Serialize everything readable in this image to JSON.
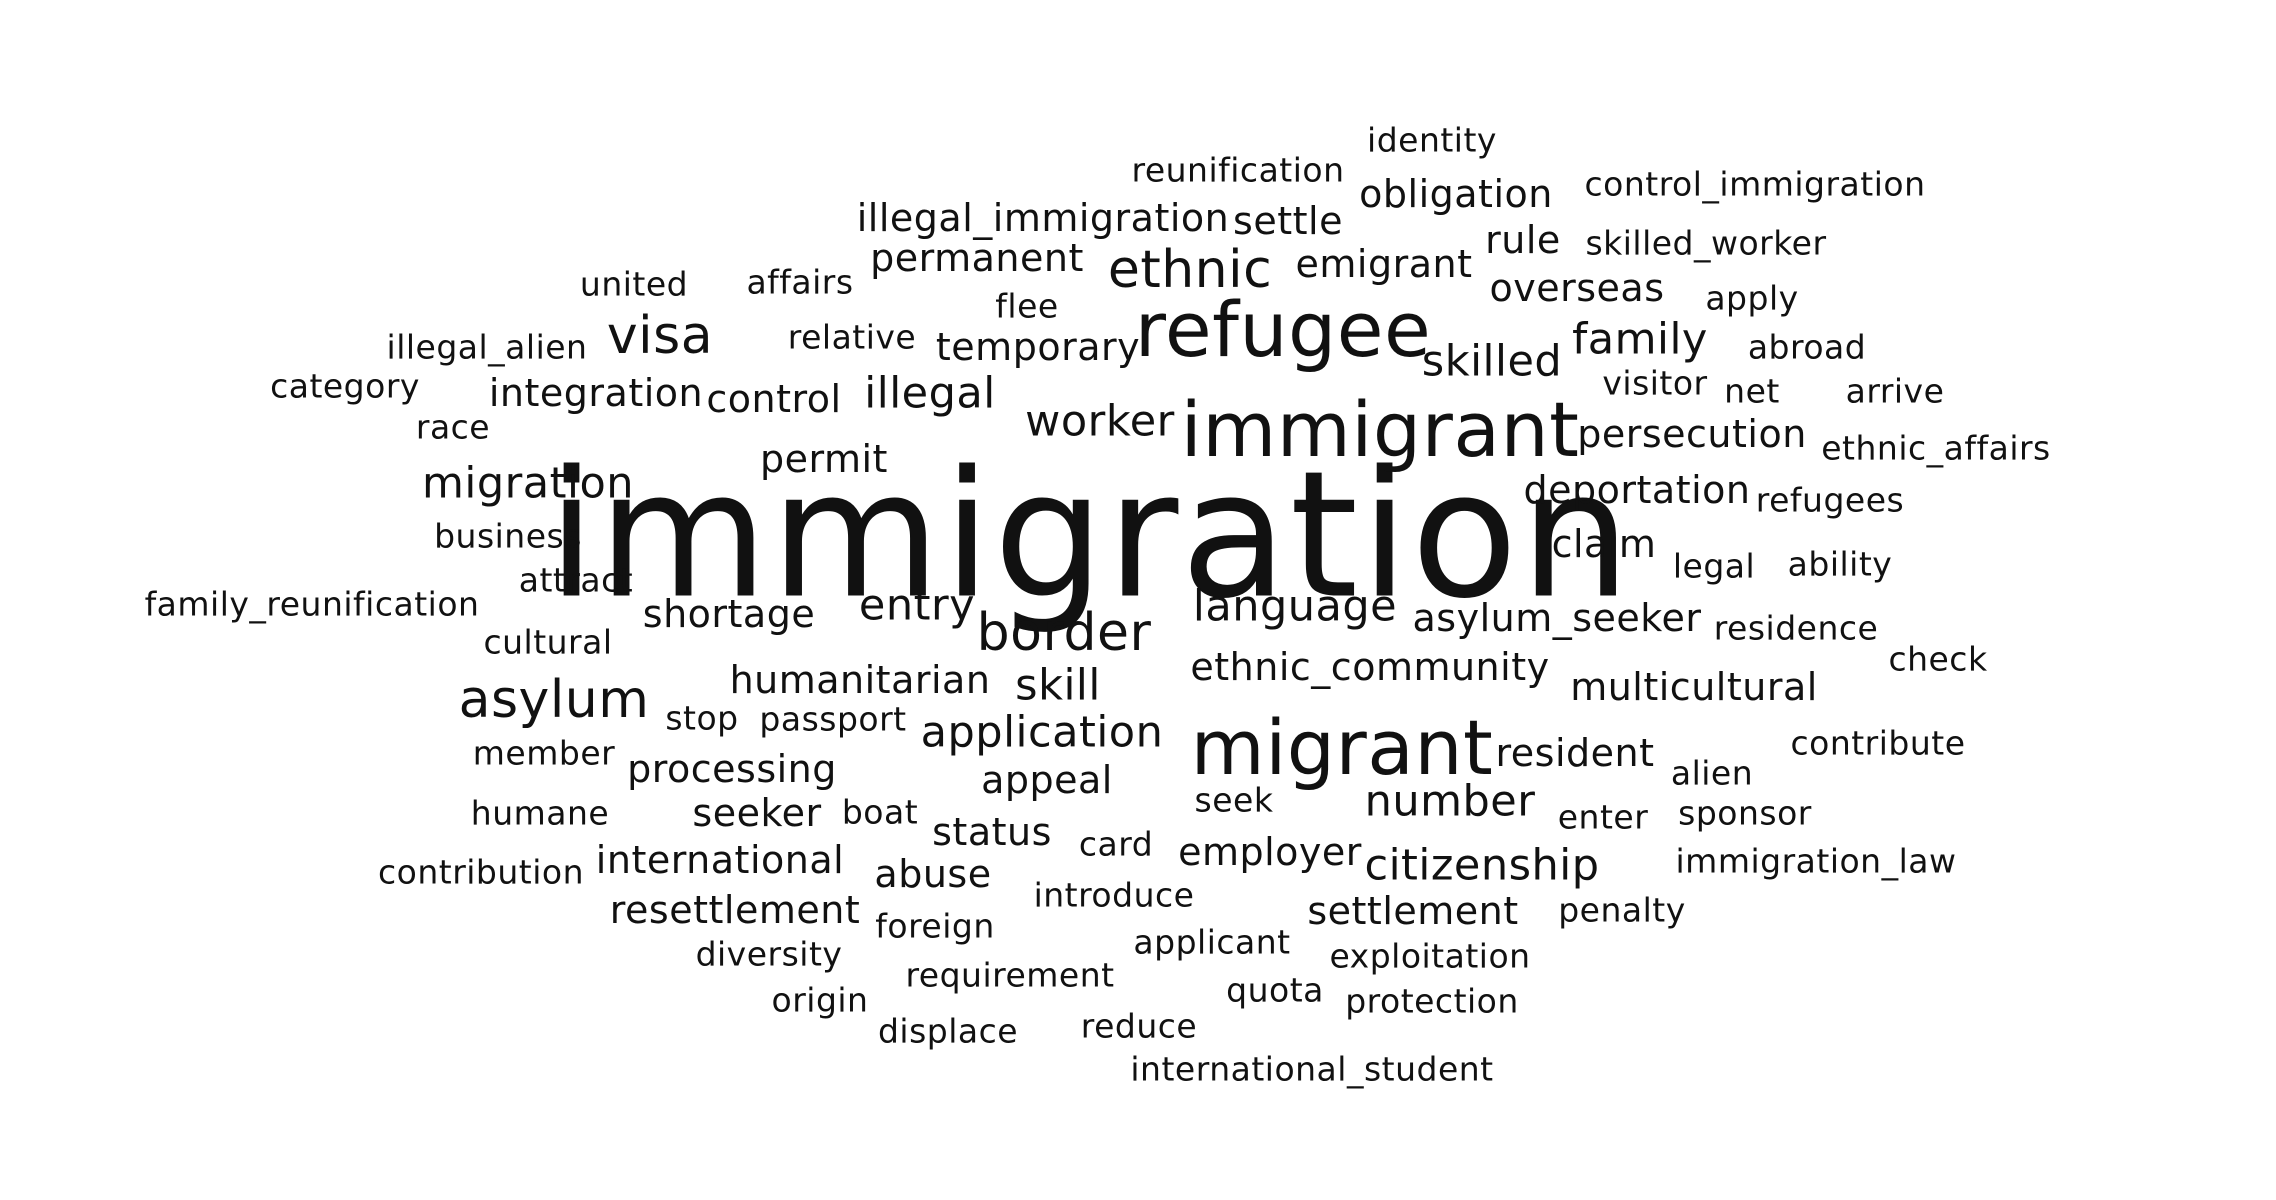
{
  "words": [
    {
      "text": "immigration",
      "weight": 1
    },
    {
      "text": "immigrant",
      "weight": 2
    },
    {
      "text": "migrant",
      "weight": 2
    },
    {
      "text": "refugee",
      "weight": 2
    },
    {
      "text": "visa",
      "weight": 3
    },
    {
      "text": "border",
      "weight": 3
    },
    {
      "text": "asylum",
      "weight": 3
    },
    {
      "text": "ethnic",
      "weight": 3
    },
    {
      "text": "migration",
      "weight": 4
    },
    {
      "text": "illegal",
      "weight": 4
    },
    {
      "text": "skilled",
      "weight": 4
    },
    {
      "text": "worker",
      "weight": 4
    },
    {
      "text": "language",
      "weight": 4
    },
    {
      "text": "skill",
      "weight": 4
    },
    {
      "text": "application",
      "weight": 4
    },
    {
      "text": "citizenship",
      "weight": 4
    },
    {
      "text": "family",
      "weight": 4
    },
    {
      "text": "number",
      "weight": 4
    },
    {
      "text": "entry",
      "weight": 4
    },
    {
      "text": "emigrant",
      "weight": 5
    },
    {
      "text": "claim",
      "weight": 5
    },
    {
      "text": "resident",
      "weight": 5
    },
    {
      "text": "seeker",
      "weight": 5
    },
    {
      "text": "asylum_seeker",
      "weight": 5
    },
    {
      "text": "ethnic_community",
      "weight": 5
    },
    {
      "text": "humanitarian",
      "weight": 5
    },
    {
      "text": "processing",
      "weight": 5
    },
    {
      "text": "international",
      "weight": 5
    },
    {
      "text": "employer",
      "weight": 5
    },
    {
      "text": "settlement",
      "weight": 5
    },
    {
      "text": "shortage",
      "weight": 5
    },
    {
      "text": "appeal",
      "weight": 5
    },
    {
      "text": "abuse",
      "weight": 5
    },
    {
      "text": "status",
      "weight": 5
    },
    {
      "text": "multicultural",
      "weight": 5
    },
    {
      "text": "overseas",
      "weight": 5
    },
    {
      "text": "resettlement",
      "weight": 5
    },
    {
      "text": "integration",
      "weight": 5
    },
    {
      "text": "control",
      "weight": 5
    },
    {
      "text": "permit",
      "weight": 5
    },
    {
      "text": "temporary",
      "weight": 5
    },
    {
      "text": "persecution",
      "weight": 5
    },
    {
      "text": "deportation",
      "weight": 5
    },
    {
      "text": "rule",
      "weight": 5
    },
    {
      "text": "settle",
      "weight": 5
    },
    {
      "text": "obligation",
      "weight": 5
    },
    {
      "text": "illegal_immigration",
      "weight": 5
    },
    {
      "text": "permanent",
      "weight": 5
    },
    {
      "text": "reunification",
      "weight": 6
    },
    {
      "text": "identity",
      "weight": 6
    },
    {
      "text": "control_immigration",
      "weight": 6
    },
    {
      "text": "skilled_worker",
      "weight": 6
    },
    {
      "text": "apply",
      "weight": 6
    },
    {
      "text": "abroad",
      "weight": 6
    },
    {
      "text": "arrive",
      "weight": 6
    },
    {
      "text": "net",
      "weight": 6
    },
    {
      "text": "visitor",
      "weight": 6
    },
    {
      "text": "ethnic_affairs",
      "weight": 6
    },
    {
      "text": "refugees",
      "weight": 6
    },
    {
      "text": "legal",
      "weight": 6
    },
    {
      "text": "ability",
      "weight": 6
    },
    {
      "text": "residence",
      "weight": 6
    },
    {
      "text": "check",
      "weight": 6
    },
    {
      "text": "contribute",
      "weight": 6
    },
    {
      "text": "alien",
      "weight": 6
    },
    {
      "text": "enter",
      "weight": 6
    },
    {
      "text": "sponsor",
      "weight": 6
    },
    {
      "text": "immigration_law",
      "weight": 6
    },
    {
      "text": "penalty",
      "weight": 6
    },
    {
      "text": "exploitation",
      "weight": 6
    },
    {
      "text": "protection",
      "weight": 6
    },
    {
      "text": "quota",
      "weight": 6
    },
    {
      "text": "applicant",
      "weight": 6
    },
    {
      "text": "introduce",
      "weight": 6
    },
    {
      "text": "reduce",
      "weight": 6
    },
    {
      "text": "international_student",
      "weight": 6
    },
    {
      "text": "displace",
      "weight": 6
    },
    {
      "text": "requirement",
      "weight": 6
    },
    {
      "text": "origin",
      "weight": 6
    },
    {
      "text": "diversity",
      "weight": 6
    },
    {
      "text": "foreign",
      "weight": 6
    },
    {
      "text": "card",
      "weight": 6
    },
    {
      "text": "seek",
      "weight": 6
    },
    {
      "text": "boat",
      "weight": 6
    },
    {
      "text": "passport",
      "weight": 6
    },
    {
      "text": "stop",
      "weight": 6
    },
    {
      "text": "member",
      "weight": 6
    },
    {
      "text": "humane",
      "weight": 6
    },
    {
      "text": "contribution",
      "weight": 6
    },
    {
      "text": "cultural",
      "weight": 6
    },
    {
      "text": "attract",
      "weight": 6
    },
    {
      "text": "family_reunification",
      "weight": 6
    },
    {
      "text": "business",
      "weight": 6
    },
    {
      "text": "race",
      "weight": 6
    },
    {
      "text": "category",
      "weight": 6
    },
    {
      "text": "illegal_alien",
      "weight": 6
    },
    {
      "text": "united",
      "weight": 6
    },
    {
      "text": "affairs",
      "weight": 6
    },
    {
      "text": "relative",
      "weight": 6
    },
    {
      "text": "flee",
      "weight": 6
    }
  ]
}
